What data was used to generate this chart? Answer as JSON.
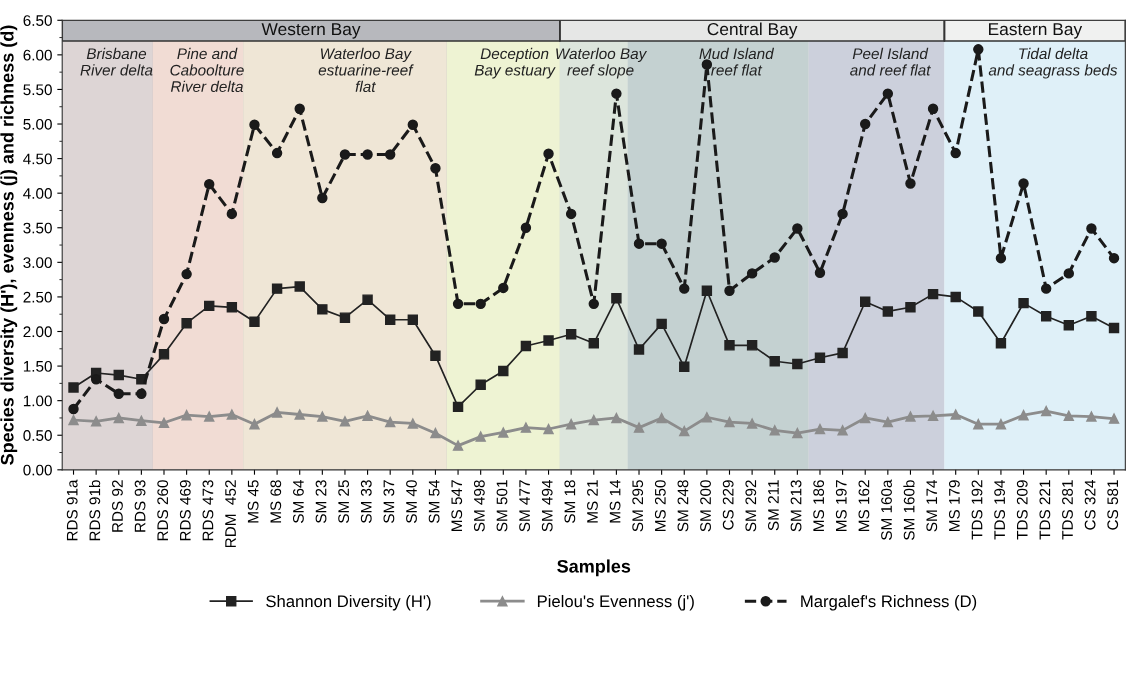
{
  "chart_data": {
    "type": "line",
    "xlabel": "Samples",
    "ylabel": "Species diversity (H'), evenness (j) and richness (d)",
    "categories": [
      "RDS 91a",
      "RDS 91b",
      "RDS 92",
      "RDS 93",
      "RDS 260",
      "RDS 469",
      "RDS 473",
      "RDM  452",
      "MS 45",
      "MS 68",
      "SM 64",
      "SM 23",
      "SM 25",
      "SM 33",
      "SM 37",
      "SM 40",
      "SM 54",
      "MS 547",
      "SM 498",
      "SM 501",
      "SM 477",
      "SM 494",
      "SM 18",
      "MS 21",
      "MS 14",
      "SM 295",
      "MS 250",
      "SM 248",
      "SM 200",
      "CS 229",
      "SM 292",
      "SM 211",
      "SM 213",
      "MS 186",
      "MS 197",
      "MS 162",
      "SM 160a",
      "SM 160b",
      "SM 174",
      "MS 179",
      "TDS 192",
      "TDS 194",
      "TDS 209",
      "TDS 221",
      "TDS 281",
      "CS 324",
      "CS 581"
    ],
    "series": [
      {
        "name": "Shannon Diversity (H')",
        "color": "#222222",
        "marker": "square",
        "line_style": "solid",
        "values": [
          1.19,
          1.4,
          1.37,
          1.31,
          1.67,
          2.12,
          2.37,
          2.35,
          2.14,
          2.62,
          2.65,
          2.32,
          2.2,
          2.46,
          2.17,
          2.17,
          1.65,
          0.91,
          1.23,
          1.43,
          1.79,
          1.87,
          1.96,
          1.83,
          2.48,
          1.74,
          2.11,
          1.49,
          2.59,
          1.8,
          1.8,
          1.57,
          1.53,
          1.62,
          1.69,
          2.43,
          2.29,
          2.35,
          2.54,
          2.5,
          2.29,
          1.83,
          2.41,
          2.22,
          2.09,
          2.22,
          2.05
        ]
      },
      {
        "name": "Pielou's Evenness (j')",
        "color": "#8c8c8c",
        "marker": "triangle",
        "line_style": "solid",
        "values": [
          0.72,
          0.7,
          0.75,
          0.71,
          0.68,
          0.79,
          0.77,
          0.8,
          0.66,
          0.83,
          0.8,
          0.77,
          0.7,
          0.78,
          0.69,
          0.67,
          0.53,
          0.35,
          0.48,
          0.54,
          0.61,
          0.59,
          0.66,
          0.72,
          0.75,
          0.61,
          0.75,
          0.56,
          0.76,
          0.69,
          0.67,
          0.57,
          0.53,
          0.59,
          0.57,
          0.75,
          0.69,
          0.77,
          0.78,
          0.8,
          0.66,
          0.66,
          0.79,
          0.85,
          0.78,
          0.77,
          0.74
        ]
      },
      {
        "name": "Margalef's Richness (D)",
        "color": "#1a1a1a",
        "marker": "circle",
        "line_style": "dashed",
        "values": [
          0.88,
          1.31,
          1.1,
          1.1,
          2.18,
          2.83,
          4.13,
          3.7,
          4.99,
          4.58,
          5.22,
          3.93,
          4.56,
          4.56,
          4.56,
          4.99,
          4.36,
          2.4,
          2.4,
          2.63,
          3.5,
          4.57,
          3.7,
          2.4,
          5.44,
          3.27,
          3.27,
          2.62,
          5.86,
          2.59,
          2.84,
          3.07,
          3.49,
          2.85,
          3.7,
          5.0,
          5.44,
          4.14,
          5.22,
          4.58,
          6.08,
          3.06,
          4.14,
          2.62,
          2.84,
          3.49,
          3.06
        ]
      }
    ],
    "ylim": [
      0,
      6.5
    ],
    "yticks": [
      {
        "value": 0,
        "label": "0.00"
      },
      {
        "value": 0.5,
        "label": "0.50"
      },
      {
        "value": 1,
        "label": "1.00"
      },
      {
        "value": 1.5,
        "label": "1.50"
      },
      {
        "value": 2,
        "label": "2.00"
      },
      {
        "value": 2.5,
        "label": "2.50"
      },
      {
        "value": 3,
        "label": "3.00"
      },
      {
        "value": 3.5,
        "label": "3.50"
      },
      {
        "value": 4,
        "label": "4.00"
      },
      {
        "value": 4.5,
        "label": "4.50"
      },
      {
        "value": 5,
        "label": "5.00"
      },
      {
        "value": 5.5,
        "label": "5.50"
      },
      {
        "value": 6,
        "label": "6.00"
      },
      {
        "value": 6.5,
        "label": "6.50"
      }
    ],
    "bands": [
      {
        "axis": "x",
        "from": "RDS 91a",
        "to": "RDS 93",
        "label": "Brisbane\nRiver delta",
        "color": "#ddd5d5"
      },
      {
        "axis": "x",
        "from": "RDS 260",
        "to": "RDM  452",
        "label": "Pine and\nCaboolture\nRiver delta",
        "color": "#f1dcd4"
      },
      {
        "axis": "x",
        "from": "MS 45",
        "to": "SM 54",
        "label": "Waterloo Bay\nestuarine-reef\nflat",
        "color": "#efe6d6"
      },
      {
        "axis": "x",
        "from": "MS 547",
        "to": "SM 494",
        "label": "Deception\nBay estuary",
        "color": "#eef3d3"
      },
      {
        "axis": "x",
        "from": "SM 18",
        "to": "MS 14",
        "label": "Waterloo Bay\nreef slope",
        "color": "#dce5dc"
      },
      {
        "axis": "x",
        "from": "SM 295",
        "to": "SM 213",
        "label": "Mud Island\nreef flat",
        "color": "#c4d1d1"
      },
      {
        "axis": "x",
        "from": "MS 186",
        "to": "SM 174",
        "label": "Peel Island\nand reef flat",
        "color": "#ccd0dc"
      },
      {
        "axis": "x",
        "from": "MS 179",
        "to": "CS 581",
        "label": "Tidal delta\nand seagrass beds",
        "color": "#dff0f8"
      },
      {
        "axis": "x",
        "from": "RDS 91a",
        "to": "SM 494",
        "label": "Western Bay",
        "color": "#b7b8bd"
      },
      {
        "axis": "x",
        "from": "SM 18",
        "to": "SM 174",
        "label": "Central Bay",
        "color": "#e6e7e6"
      },
      {
        "axis": "x",
        "from": "MS 179",
        "to": "CS 581",
        "label": "Eastern Bay",
        "color": "#f0f1f0"
      }
    ],
    "legend": "bottom",
    "grid": false
  }
}
